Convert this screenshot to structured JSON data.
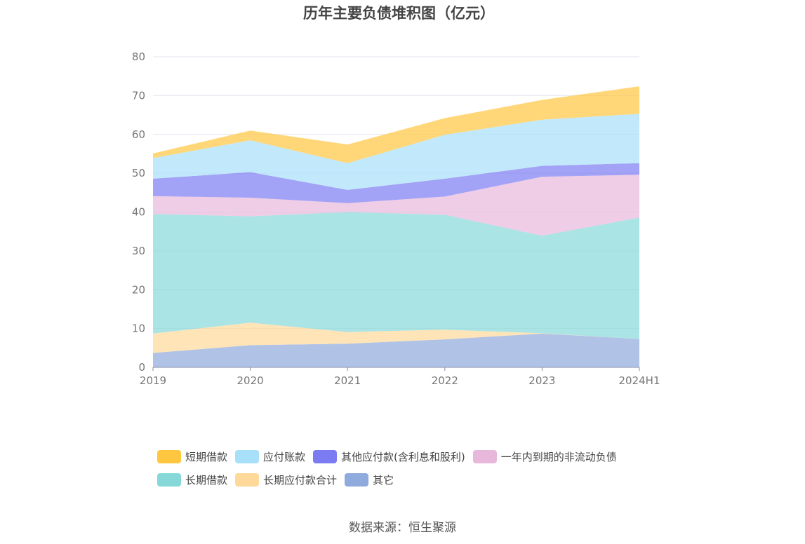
{
  "chart_data": {
    "type": "area",
    "stacked": true,
    "title": "历年主要负债堆积图（亿元）",
    "xlabel": "",
    "ylabel": "",
    "categories": [
      "2019",
      "2020",
      "2021",
      "2022",
      "2023",
      "2024H1"
    ],
    "ylim": [
      0,
      80
    ],
    "yticks": [
      0,
      10,
      20,
      30,
      40,
      50,
      60,
      70,
      80
    ],
    "grid": true,
    "legend_position": "bottom",
    "series": [
      {
        "name": "其它",
        "color": "#8faadc",
        "values": [
          3.7,
          5.7,
          6.1,
          7.2,
          8.7,
          7.3
        ]
      },
      {
        "name": "长期应付款合计",
        "color": "#ffd99a",
        "values": [
          5.0,
          5.8,
          3.0,
          2.5,
          0.1,
          0.0
        ]
      },
      {
        "name": "长期借款",
        "color": "#86d8d8",
        "values": [
          30.8,
          27.4,
          30.9,
          29.6,
          25.1,
          31.3
        ]
      },
      {
        "name": "一年内到期的非流动负债",
        "color": "#e8b8dc",
        "values": [
          4.6,
          4.8,
          2.3,
          4.7,
          15.2,
          11.0
        ]
      },
      {
        "name": "其他应付款(含利息和股利)",
        "color": "#7b7cf2",
        "values": [
          4.5,
          6.6,
          3.4,
          4.6,
          2.8,
          3.0
        ]
      },
      {
        "name": "应付账款",
        "color": "#a8e0fa",
        "values": [
          5.3,
          8.2,
          6.9,
          11.3,
          11.9,
          12.7
        ]
      },
      {
        "name": "短期借款",
        "color": "#ffc640",
        "values": [
          1.2,
          2.5,
          4.8,
          4.3,
          5.1,
          7.1
        ]
      }
    ]
  },
  "legend_order": [
    {
      "name": "短期借款",
      "color": "#ffc640"
    },
    {
      "name": "应付账款",
      "color": "#a8e0fa"
    },
    {
      "name": "其他应付款(含利息和股利)",
      "color": "#7b7cf2"
    },
    {
      "name": "一年内到期的非流动负债",
      "color": "#e8b8dc"
    },
    {
      "name": "长期借款",
      "color": "#86d8d8"
    },
    {
      "name": "长期应付款合计",
      "color": "#ffd99a"
    },
    {
      "name": "其它",
      "color": "#8faadc"
    }
  ],
  "source": "数据来源：恒生聚源"
}
